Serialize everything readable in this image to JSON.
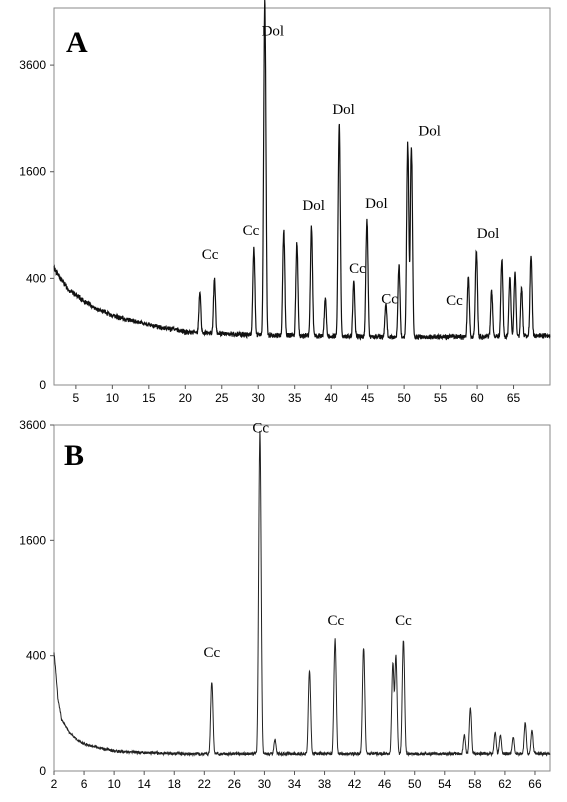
{
  "figure": {
    "panels": [
      "A",
      "B"
    ]
  },
  "chart_data": [
    {
      "type": "line",
      "panel_label": "A",
      "title": "",
      "xlabel": "",
      "ylabel": "",
      "xlim": [
        2,
        70
      ],
      "ylim_sqrt": [
        0,
        5000
      ],
      "x_ticks": [
        5,
        10,
        15,
        20,
        25,
        30,
        35,
        40,
        45,
        50,
        55,
        60,
        65
      ],
      "y_ticks": [
        400,
        1600,
        3600
      ],
      "y_tick_labels": [
        "400",
        "1600",
        "3600"
      ],
      "x_tick_labels": [
        "5",
        "10",
        "15",
        "20",
        "25",
        "30",
        "35",
        "40",
        "45",
        "50",
        "55",
        "60",
        "65"
      ],
      "y_scale": "square-root",
      "background": {
        "x": [
          2,
          3,
          4,
          6,
          8,
          10,
          12,
          14,
          16,
          18,
          20,
          25,
          30,
          40,
          50,
          60,
          70
        ],
        "y": [
          480,
          390,
          320,
          250,
          200,
          170,
          150,
          135,
          120,
          110,
          100,
          92,
          88,
          84,
          80,
          82,
          85
        ]
      },
      "peaks": [
        {
          "x": 22.0,
          "y": 200
        },
        {
          "x": 24.0,
          "y": 300
        },
        {
          "x": 29.4,
          "y": 580
        },
        {
          "x": 30.9,
          "y": 5000
        },
        {
          "x": 33.5,
          "y": 750
        },
        {
          "x": 35.3,
          "y": 620
        },
        {
          "x": 37.3,
          "y": 780
        },
        {
          "x": 39.2,
          "y": 180
        },
        {
          "x": 41.1,
          "y": 2300
        },
        {
          "x": 43.1,
          "y": 290
        },
        {
          "x": 44.9,
          "y": 880
        },
        {
          "x": 47.5,
          "y": 150
        },
        {
          "x": 49.3,
          "y": 420
        },
        {
          "x": 50.5,
          "y": 1960
        },
        {
          "x": 51.0,
          "y": 1940
        },
        {
          "x": 58.8,
          "y": 330
        },
        {
          "x": 59.9,
          "y": 560
        },
        {
          "x": 62.0,
          "y": 230
        },
        {
          "x": 63.4,
          "y": 470
        },
        {
          "x": 64.5,
          "y": 330
        },
        {
          "x": 65.2,
          "y": 350
        },
        {
          "x": 66.1,
          "y": 250
        },
        {
          "x": 67.4,
          "y": 510
        }
      ],
      "annotations": [
        {
          "text": "Cc",
          "x": 23.4,
          "y": 560
        },
        {
          "text": "Cc",
          "x": 29.0,
          "y": 790
        },
        {
          "text": "Dol",
          "x": 32.0,
          "y": 4300
        },
        {
          "text": "Dol",
          "x": 37.6,
          "y": 1080
        },
        {
          "text": "Dol",
          "x": 41.7,
          "y": 2580
        },
        {
          "text": "Cc",
          "x": 43.6,
          "y": 440
        },
        {
          "text": "Dol",
          "x": 46.2,
          "y": 1100
        },
        {
          "text": "Cc",
          "x": 48.0,
          "y": 235
        },
        {
          "text": "Dol",
          "x": 53.5,
          "y": 2190
        },
        {
          "text": "Cc",
          "x": 56.9,
          "y": 225
        },
        {
          "text": "Dol",
          "x": 61.5,
          "y": 760
        }
      ]
    },
    {
      "type": "line",
      "panel_label": "B",
      "title": "",
      "xlabel": "",
      "ylabel": "",
      "xlim": [
        2,
        68
      ],
      "ylim_sqrt": [
        0,
        3600
      ],
      "x_ticks": [
        2,
        6,
        10,
        14,
        18,
        22,
        26,
        30,
        34,
        38,
        42,
        46,
        50,
        54,
        58,
        62,
        66
      ],
      "y_ticks": [
        400,
        1600,
        3600
      ],
      "y_tick_labels": [
        "400",
        "1600",
        "3600"
      ],
      "x_tick_labels": [
        "2",
        "6",
        "10",
        "14",
        "18",
        "22",
        "26",
        "30",
        "34",
        "38",
        "42",
        "46",
        "50",
        "54",
        "58",
        "62",
        "66"
      ],
      "y_scale": "square-root",
      "background": {
        "x": [
          2,
          2.5,
          3,
          4,
          5,
          6,
          8,
          10,
          14,
          20,
          30,
          40,
          50,
          60,
          68
        ],
        "y": [
          420,
          160,
          80,
          45,
          30,
          22,
          16,
          12,
          10,
          9,
          9,
          9,
          9,
          9,
          9
        ]
      },
      "peaks": [
        {
          "x": 23.0,
          "y": 230
        },
        {
          "x": 29.4,
          "y": 3400
        },
        {
          "x": 31.4,
          "y": 20
        },
        {
          "x": 36.0,
          "y": 290
        },
        {
          "x": 39.4,
          "y": 510
        },
        {
          "x": 43.2,
          "y": 450
        },
        {
          "x": 47.1,
          "y": 340
        },
        {
          "x": 47.5,
          "y": 390
        },
        {
          "x": 48.5,
          "y": 510
        },
        {
          "x": 56.6,
          "y": 30
        },
        {
          "x": 57.4,
          "y": 110
        },
        {
          "x": 60.7,
          "y": 35
        },
        {
          "x": 61.4,
          "y": 30
        },
        {
          "x": 63.1,
          "y": 25
        },
        {
          "x": 64.7,
          "y": 60
        },
        {
          "x": 65.6,
          "y": 40
        }
      ],
      "annotations": [
        {
          "text": "Cc",
          "x": 23.0,
          "y": 390
        },
        {
          "text": "Cc",
          "x": 29.5,
          "y": 3450
        },
        {
          "text": "Cc",
          "x": 39.5,
          "y": 640
        },
        {
          "text": "Cc",
          "x": 48.5,
          "y": 640
        }
      ]
    }
  ]
}
